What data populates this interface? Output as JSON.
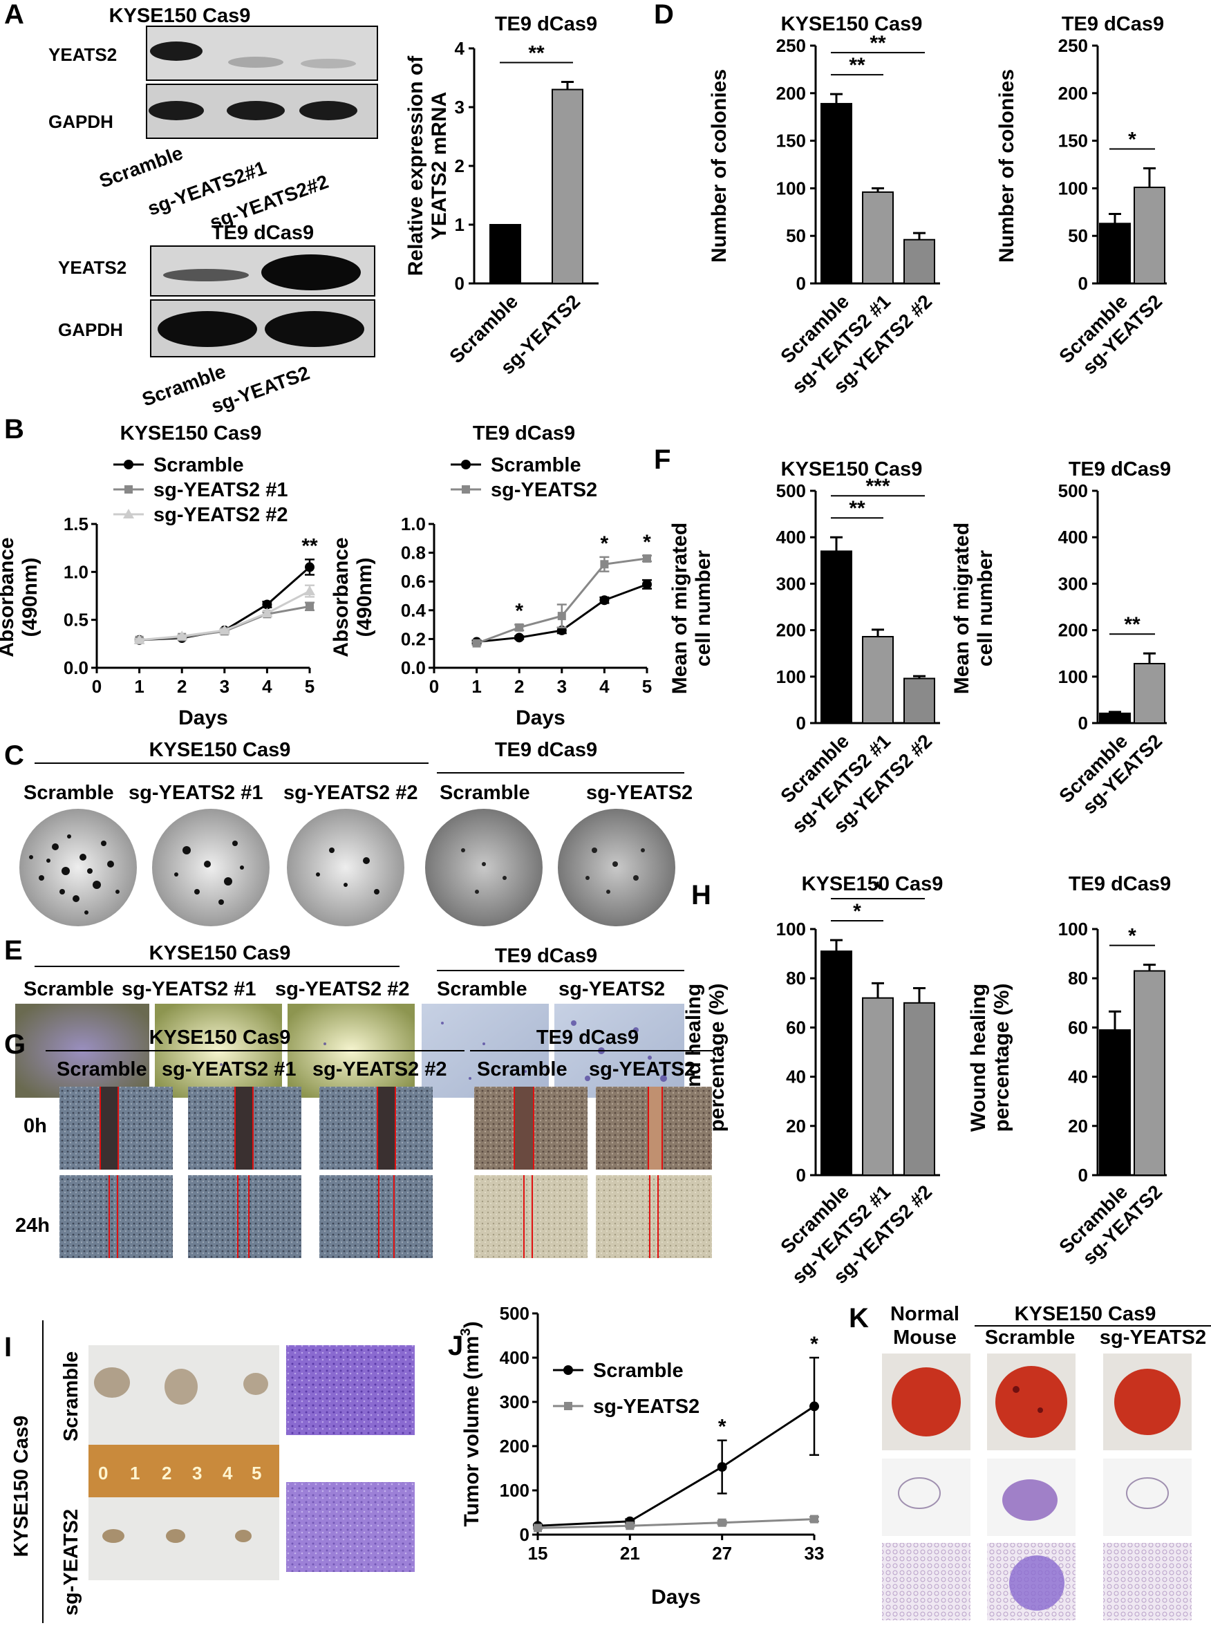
{
  "panels": {
    "A": {
      "label": "A",
      "blot1": {
        "title": "KYSE150  Cas9",
        "rows": [
          "YEATS2",
          "GAPDH"
        ],
        "lanes": [
          "Scramble",
          "sg-YEATS2#1",
          "sg-YEATS2#2"
        ]
      },
      "blot2": {
        "title": "TE9 dCas9",
        "rows": [
          "YEATS2",
          "GAPDH"
        ],
        "lanes": [
          "Scramble",
          "sg-YEATS2"
        ]
      }
    },
    "B": {
      "label": "B"
    },
    "C": {
      "label": "C",
      "group1": "KYSE150 Cas9",
      "group2": "TE9 dCas9",
      "captions": [
        "Scramble",
        "sg-YEATS2 #1",
        "sg-YEATS2 #2",
        "Scramble",
        "sg-YEATS2"
      ]
    },
    "D": {
      "label": "D"
    },
    "E": {
      "label": "E",
      "group1": "KYSE150 Cas9",
      "group2": "TE9 dCas9",
      "captions": [
        "Scramble",
        "sg-YEATS2 #1",
        "sg-YEATS2 #2",
        "Scramble",
        "sg-YEATS2"
      ]
    },
    "F": {
      "label": "F"
    },
    "G": {
      "label": "G",
      "group1": "KYSE150 Cas9",
      "group2": "TE9 dCas9",
      "captions": [
        "Scramble",
        "sg-YEATS2 #1",
        "sg-YEATS2 #2",
        "Scramble",
        "sg-YEATS2"
      ],
      "rows": [
        "0h",
        "24h"
      ]
    },
    "H": {
      "label": "H"
    },
    "I": {
      "label": "I",
      "side": "KYSE150 Cas9",
      "rows": [
        "Scramble",
        "sg-YEATS2"
      ],
      "ruler": [
        "0",
        "1",
        "2",
        "3",
        "4",
        "5"
      ]
    },
    "J": {
      "label": "J"
    },
    "K": {
      "label": "K",
      "col1": "Normal Mouse",
      "col1a": "Normal",
      "col1b": "Mouse",
      "group": "KYSE150 Cas9",
      "cols": [
        "Scramble",
        "sg-YEATS2"
      ]
    }
  },
  "colors": {
    "black": "#000000",
    "grey": "#999999",
    "lightgrey": "#8c8c8c",
    "line_grey": "#888888",
    "line_light": "#cccccc",
    "lung_red": "#c8321e",
    "transwell_yellow": "#c9cc7a",
    "transwell_purple": "#5a4aa0",
    "transwell_blue": "#b9c6dc",
    "wound_red": "#e01010"
  },
  "chart_data": [
    {
      "id": "A-bar",
      "type": "bar",
      "title": "TE9 dCas9",
      "categories": [
        "Scramble",
        "sg-YEATS2"
      ],
      "values": [
        1.0,
        3.3
      ],
      "errors": [
        0,
        0.13
      ],
      "ylabel": "Relative  expression of YEATS2 mRNA",
      "ylabel_lines": [
        "Relative  expression of",
        "YEATS2 mRNA"
      ],
      "ylim": [
        0,
        4
      ],
      "yticks": [
        0,
        1,
        2,
        3,
        4
      ],
      "significance": [
        {
          "from": 0,
          "to": 1,
          "text": "**"
        }
      ]
    },
    {
      "id": "B-line-1",
      "type": "line",
      "title": "KYSE150 Cas9",
      "x": [
        1,
        2,
        3,
        4,
        5
      ],
      "xlabel": "Days",
      "ylabel": "Absorbance (490nm)",
      "ylabel_lines": [
        "Absorbance",
        "(490nm)"
      ],
      "xlim": [
        0,
        5
      ],
      "ylim": [
        0,
        1.5
      ],
      "xticks": [
        0,
        1,
        2,
        3,
        4,
        5
      ],
      "yticks": [
        0.0,
        0.5,
        1.0,
        1.5
      ],
      "yticklabels": [
        "0.0",
        "0.5",
        "1.0",
        "1.5"
      ],
      "series": [
        {
          "name": "Scramble",
          "values": [
            0.29,
            0.31,
            0.39,
            0.66,
            1.05
          ],
          "errors": [
            0.01,
            0.01,
            0.01,
            0.03,
            0.08
          ]
        },
        {
          "name": "sg-YEATS2 #1",
          "values": [
            0.29,
            0.32,
            0.38,
            0.56,
            0.64
          ],
          "errors": [
            0.01,
            0.01,
            0.01,
            0.02,
            0.04
          ]
        },
        {
          "name": "sg-YEATS2 #2",
          "values": [
            0.29,
            0.33,
            0.39,
            0.57,
            0.8
          ],
          "errors": [
            0.01,
            0.01,
            0.01,
            0.02,
            0.06
          ]
        }
      ],
      "significance": [
        {
          "x": 5,
          "text": "**"
        }
      ]
    },
    {
      "id": "B-line-2",
      "type": "line",
      "title": "TE9 dCas9",
      "x": [
        1,
        2,
        3,
        4,
        5
      ],
      "xlabel": "Days",
      "ylabel": "Absorbance (490nm)",
      "ylabel_lines": [
        "Absorbance",
        "(490nm)"
      ],
      "xlim": [
        0,
        5
      ],
      "ylim": [
        0,
        1.0
      ],
      "xticks": [
        0,
        1,
        2,
        3,
        4,
        5
      ],
      "yticks": [
        0.0,
        0.2,
        0.4,
        0.6,
        0.8,
        1.0
      ],
      "yticklabels": [
        "0.0",
        "0.2",
        "0.4",
        "0.6",
        "0.8",
        "1.0"
      ],
      "series": [
        {
          "name": "Scramble",
          "values": [
            0.18,
            0.21,
            0.26,
            0.47,
            0.58
          ],
          "errors": [
            0.01,
            0.01,
            0.02,
            0.02,
            0.03
          ]
        },
        {
          "name": "sg-YEATS2",
          "values": [
            0.17,
            0.28,
            0.36,
            0.72,
            0.76
          ],
          "errors": [
            0.01,
            0.02,
            0.08,
            0.05,
            0.02
          ]
        }
      ],
      "significance": [
        {
          "x": 2,
          "text": "*"
        },
        {
          "x": 4,
          "text": "*"
        },
        {
          "x": 5,
          "text": "*"
        }
      ]
    },
    {
      "id": "D-bar-1",
      "type": "bar",
      "title": "KYSE150 Cas9",
      "categories": [
        "Scramble",
        "sg-YEATS2 #1",
        "sg-YEATS2 #2"
      ],
      "values": [
        189,
        96,
        46
      ],
      "errors": [
        10,
        4,
        7
      ],
      "ylabel": "Number of colonies",
      "ylim": [
        0,
        250
      ],
      "yticks": [
        0,
        50,
        100,
        150,
        200,
        250
      ],
      "significance": [
        {
          "from": 0,
          "to": 1,
          "text": "**"
        },
        {
          "from": 0,
          "to": 2,
          "text": "**"
        }
      ]
    },
    {
      "id": "D-bar-2",
      "type": "bar",
      "title": "TE9 dCas9",
      "categories": [
        "Scramble",
        "sg-YEATS2"
      ],
      "values": [
        63,
        101
      ],
      "errors": [
        10,
        20
      ],
      "ylabel": "Number of colonies",
      "ylim": [
        0,
        250
      ],
      "yticks": [
        0,
        50,
        100,
        150,
        200,
        250
      ],
      "significance": [
        {
          "from": 0,
          "to": 1,
          "text": "*"
        }
      ]
    },
    {
      "id": "F-bar-1",
      "type": "bar",
      "title": "KYSE150 Cas9",
      "categories": [
        "Scramble",
        "sg-YEATS2 #1",
        "sg-YEATS2 #2"
      ],
      "values": [
        370,
        186,
        96
      ],
      "errors": [
        30,
        15,
        5
      ],
      "ylabel": "Mean of migrated cell number",
      "ylabel_lines": [
        "Mean of migrated",
        "cell number"
      ],
      "ylim": [
        0,
        500
      ],
      "yticks": [
        0,
        100,
        200,
        300,
        400,
        500
      ],
      "significance": [
        {
          "from": 0,
          "to": 1,
          "text": "**"
        },
        {
          "from": 0,
          "to": 2,
          "text": "***"
        }
      ]
    },
    {
      "id": "F-bar-2",
      "type": "bar",
      "title": "TE9 dCas9",
      "categories": [
        "Scramble",
        "sg-YEATS2"
      ],
      "values": [
        21,
        128
      ],
      "errors": [
        3,
        22
      ],
      "ylabel": "Mean of migrated cell number",
      "ylabel_lines": [
        "Mean of migrated",
        "cell number"
      ],
      "ylim": [
        0,
        500
      ],
      "yticks": [
        0,
        100,
        200,
        300,
        400,
        500
      ],
      "significance": [
        {
          "from": 0,
          "to": 1,
          "text": "**"
        }
      ]
    },
    {
      "id": "H-bar-1",
      "type": "bar",
      "title": "KYSE150 Cas9",
      "categories": [
        "Scramble",
        "sg-YEATS2 #1",
        "sg-YEATS2 #2"
      ],
      "values": [
        91,
        72,
        70
      ],
      "errors": [
        4.5,
        6,
        6
      ],
      "ylabel": "Wound healing percentage (%)",
      "ylabel_lines": [
        "Wound healing",
        "percentage (%)"
      ],
      "ylim": [
        0,
        100
      ],
      "yticks": [
        0,
        20,
        40,
        60,
        80,
        100
      ],
      "significance": [
        {
          "from": 0,
          "to": 1,
          "text": "*"
        },
        {
          "from": 0,
          "to": 2,
          "text": "*"
        }
      ]
    },
    {
      "id": "H-bar-2",
      "type": "bar",
      "title": "TE9 dCas9",
      "categories": [
        "Scramble",
        "sg-YEATS2"
      ],
      "values": [
        59,
        83
      ],
      "errors": [
        7.5,
        2.5
      ],
      "ylabel": "Wound healing percentage (%)",
      "ylabel_lines": [
        "Wound healing",
        "percentage (%)"
      ],
      "ylim": [
        0,
        100
      ],
      "yticks": [
        0,
        20,
        40,
        60,
        80,
        100
      ],
      "significance": [
        {
          "from": 0,
          "to": 1,
          "text": "*"
        }
      ]
    },
    {
      "id": "J-line",
      "type": "line",
      "x": [
        15,
        21,
        27,
        33
      ],
      "xlabel": "Days",
      "ylabel": "Tumor volume (mm3)",
      "ylabel_main": "Tumor volume (mm",
      "ylabel_sup": "3",
      "ylabel_end": ")",
      "ylim": [
        0,
        500
      ],
      "yticks": [
        0,
        100,
        200,
        300,
        400,
        500
      ],
      "xticks": [
        15,
        21,
        27,
        33
      ],
      "series": [
        {
          "name": "Scramble",
          "values": [
            20,
            30,
            153,
            290
          ],
          "errors": [
            3,
            5,
            60,
            110
          ]
        },
        {
          "name": "sg-YEATS2",
          "values": [
            15,
            20,
            27,
            35
          ],
          "errors": [
            2,
            3,
            4,
            5
          ]
        }
      ],
      "significance": [
        {
          "x": 27,
          "text": "*"
        },
        {
          "x": 33,
          "text": "*"
        }
      ]
    }
  ]
}
